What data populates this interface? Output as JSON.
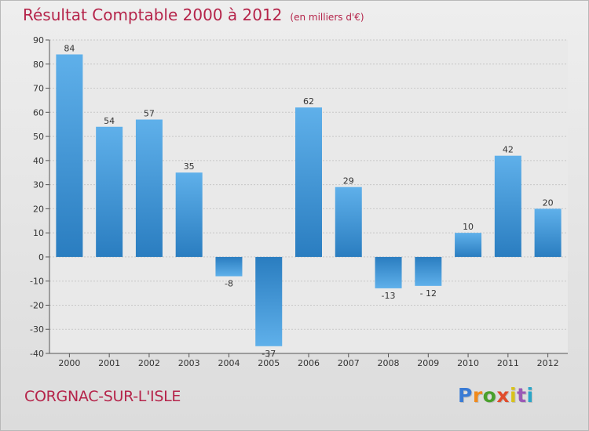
{
  "title": "Résultat Comptable 2000 à 2012",
  "subtitle": "(en milliers d'€)",
  "commune": "CORGNAC-SUR-L'ISLE",
  "logo": {
    "letters": [
      "P",
      "r",
      "o",
      "x",
      "i",
      "t",
      "i"
    ],
    "colors": [
      "#3a7bd5",
      "#f08a1c",
      "#4aa02c",
      "#e04b2a",
      "#d8c21a",
      "#9b59b6",
      "#2aa6c8"
    ]
  },
  "colors": {
    "bar_top": "#5fb0ea",
    "bar_bottom": "#2a7dc0",
    "title": "#b5244a"
  },
  "chart_data": {
    "type": "bar",
    "categories": [
      "2000",
      "2001",
      "2002",
      "2003",
      "2004",
      "2005",
      "2006",
      "2007",
      "2008",
      "2009",
      "2010",
      "2011",
      "2012"
    ],
    "values": [
      84,
      54,
      57,
      35,
      -8,
      -37,
      62,
      29,
      -13,
      -12,
      10,
      42,
      20
    ],
    "value_labels": [
      "84",
      "54",
      "57",
      "35",
      "-8",
      "-37",
      "62",
      "29",
      "-13",
      "- 12",
      "10",
      "42",
      "20"
    ],
    "yticks": [
      "90",
      "80",
      "70",
      "60",
      "50",
      "40",
      "30",
      "20",
      "10",
      "0",
      "-10",
      "-20",
      "-30",
      "-40"
    ],
    "ylim": [
      -40,
      90
    ],
    "grid": true,
    "xlabel": "",
    "ylabel": ""
  }
}
